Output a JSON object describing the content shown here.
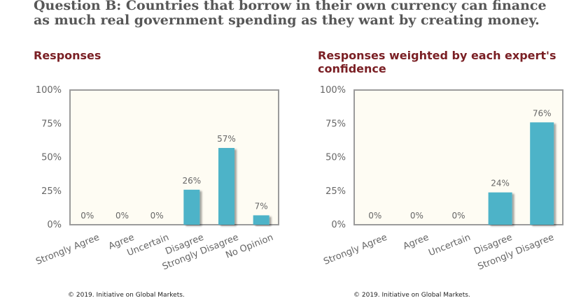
{
  "question": {
    "text": "Question B: Countries that borrow in their own currency can finance as much real government spending as they want by creating money."
  },
  "colors": {
    "bar": "#4db3c8",
    "plot_background": "#fefcf3",
    "heading": "#7a1f24"
  },
  "chart_data": [
    {
      "type": "bar",
      "title": "Responses",
      "categories": [
        "Strongly Agree",
        "Agree",
        "Uncertain",
        "Disagree",
        "Strongly Disagree",
        "No Opinion"
      ],
      "values": [
        0,
        0,
        0,
        26,
        57,
        7
      ],
      "data_labels": [
        "0%",
        "0%",
        "0%",
        "26%",
        "57%",
        "7%"
      ],
      "yticks": [
        "0%",
        "25%",
        "50%",
        "75%",
        "100%"
      ],
      "ylim": [
        0,
        100
      ],
      "grid": false,
      "legend": "none",
      "copyright": "© 2019. Initiative on Global Markets."
    },
    {
      "type": "bar",
      "title": "Responses weighted by each expert's confidence",
      "categories": [
        "Strongly Agree",
        "Agree",
        "Uncertain",
        "Disagree",
        "Strongly Disagree"
      ],
      "values": [
        0,
        0,
        0,
        24,
        76
      ],
      "data_labels": [
        "0%",
        "0%",
        "0%",
        "24%",
        "76%"
      ],
      "yticks": [
        "0%",
        "25%",
        "50%",
        "75%",
        "100%"
      ],
      "ylim": [
        0,
        100
      ],
      "grid": false,
      "legend": "none",
      "copyright": "© 2019. Initiative on Global Markets."
    }
  ]
}
